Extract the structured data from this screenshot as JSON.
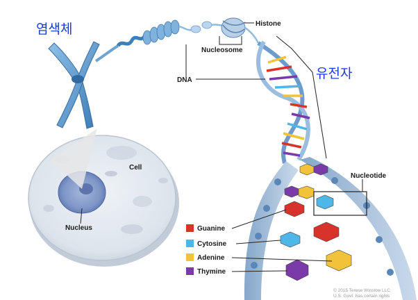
{
  "korean_labels": {
    "chromosome": "염색체",
    "gene": "유전자"
  },
  "labels": {
    "histone": "Histone",
    "nucleosome": "Nucleosome",
    "dna": "DNA",
    "cell": "Cell",
    "nucleus": "Nucleus",
    "nucleotide": "Nucleotide"
  },
  "legend": [
    {
      "label": "Guanine",
      "color": "#d8332a"
    },
    {
      "label": "Cytosine",
      "color": "#4fb6e8"
    },
    {
      "label": "Adenine",
      "color": "#f2c23a"
    },
    {
      "label": "Thymine",
      "color": "#7a3aa8"
    }
  ],
  "credit": {
    "line1": "© 2015 Terese Winslow LLC",
    "line2": "U.S. Govt. has certain rights"
  }
}
